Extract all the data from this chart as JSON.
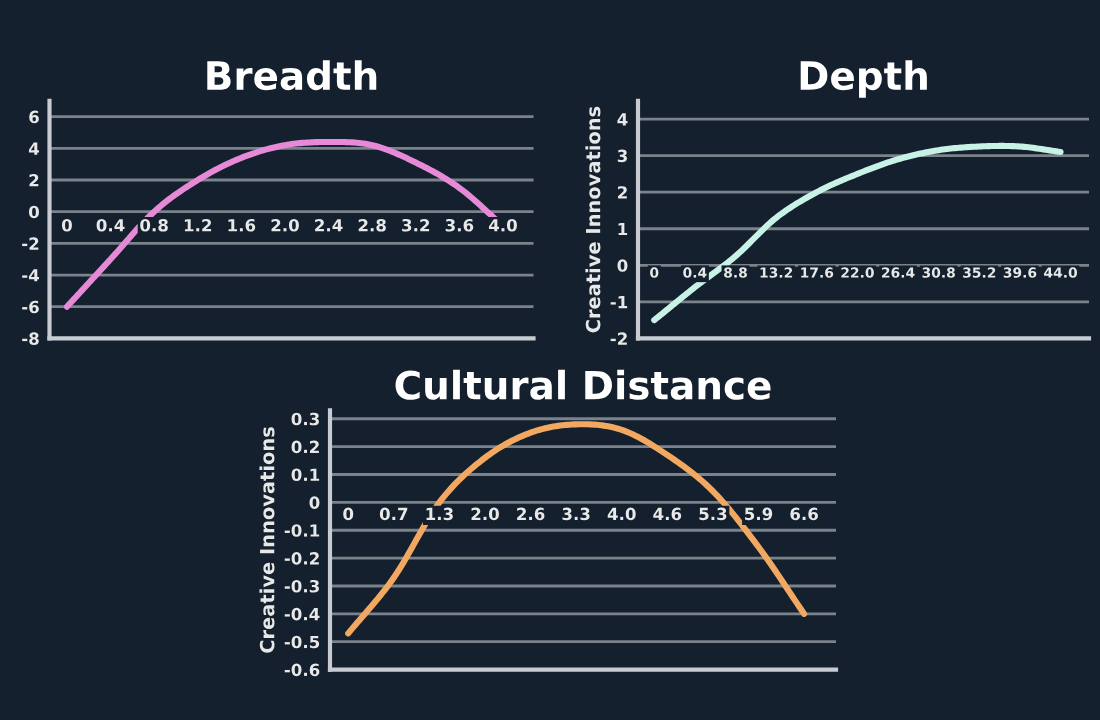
{
  "chart_data": [
    {
      "type": "line",
      "title": "Breadth",
      "categories": [
        "0",
        "0.4",
        "0.8",
        "1.2",
        "1.6",
        "2.0",
        "2.4",
        "2.8",
        "3.2",
        "3.6",
        "4.0"
      ],
      "series": [
        {
          "color": "#e68ad8",
          "values": [
            -6,
            -3,
            0,
            2,
            3.4,
            4.2,
            4.4,
            4.2,
            3.1,
            1.5,
            -0.9
          ]
        }
      ],
      "ylim": [
        -8,
        7
      ],
      "yticks": [
        -8,
        -6,
        -4,
        -2,
        0,
        2,
        4,
        6
      ],
      "grid": "y"
    },
    {
      "type": "line",
      "title": "Depth",
      "ylabel": "Creative Innovations",
      "categories": [
        "0",
        "0.4",
        "8.8",
        "13.2",
        "17.6",
        "22.0",
        "26.4",
        "30.8",
        "35.2",
        "39.6",
        "44.0"
      ],
      "series": [
        {
          "color": "#c9f2e6",
          "values": [
            -1.5,
            -0.6,
            0.25,
            1.3,
            2.0,
            2.5,
            2.9,
            3.15,
            3.25,
            3.25,
            3.1
          ]
        }
      ],
      "ylim": [
        -2,
        4.5
      ],
      "yticks": [
        -2,
        -1,
        0,
        1,
        2,
        3,
        4
      ],
      "grid": "y"
    },
    {
      "type": "line",
      "title": "Cultural Distance",
      "ylabel": "Creative Innovations",
      "categories": [
        "0",
        "0.7",
        "1.3",
        "2.0",
        "2.6",
        "3.3",
        "4.0",
        "4.6",
        "5.3",
        "5.9",
        "6.6"
      ],
      "series": [
        {
          "color": "#f2a860",
          "values": [
            -0.47,
            -0.27,
            0.0,
            0.16,
            0.25,
            0.28,
            0.26,
            0.17,
            0.04,
            -0.16,
            -0.4
          ]
        }
      ],
      "ylim": [
        -0.6,
        0.33
      ],
      "yticks": [
        -0.6,
        -0.5,
        -0.4,
        -0.3,
        -0.2,
        -0.1,
        0,
        0.1,
        0.2,
        0.3
      ],
      "grid": "y"
    }
  ]
}
